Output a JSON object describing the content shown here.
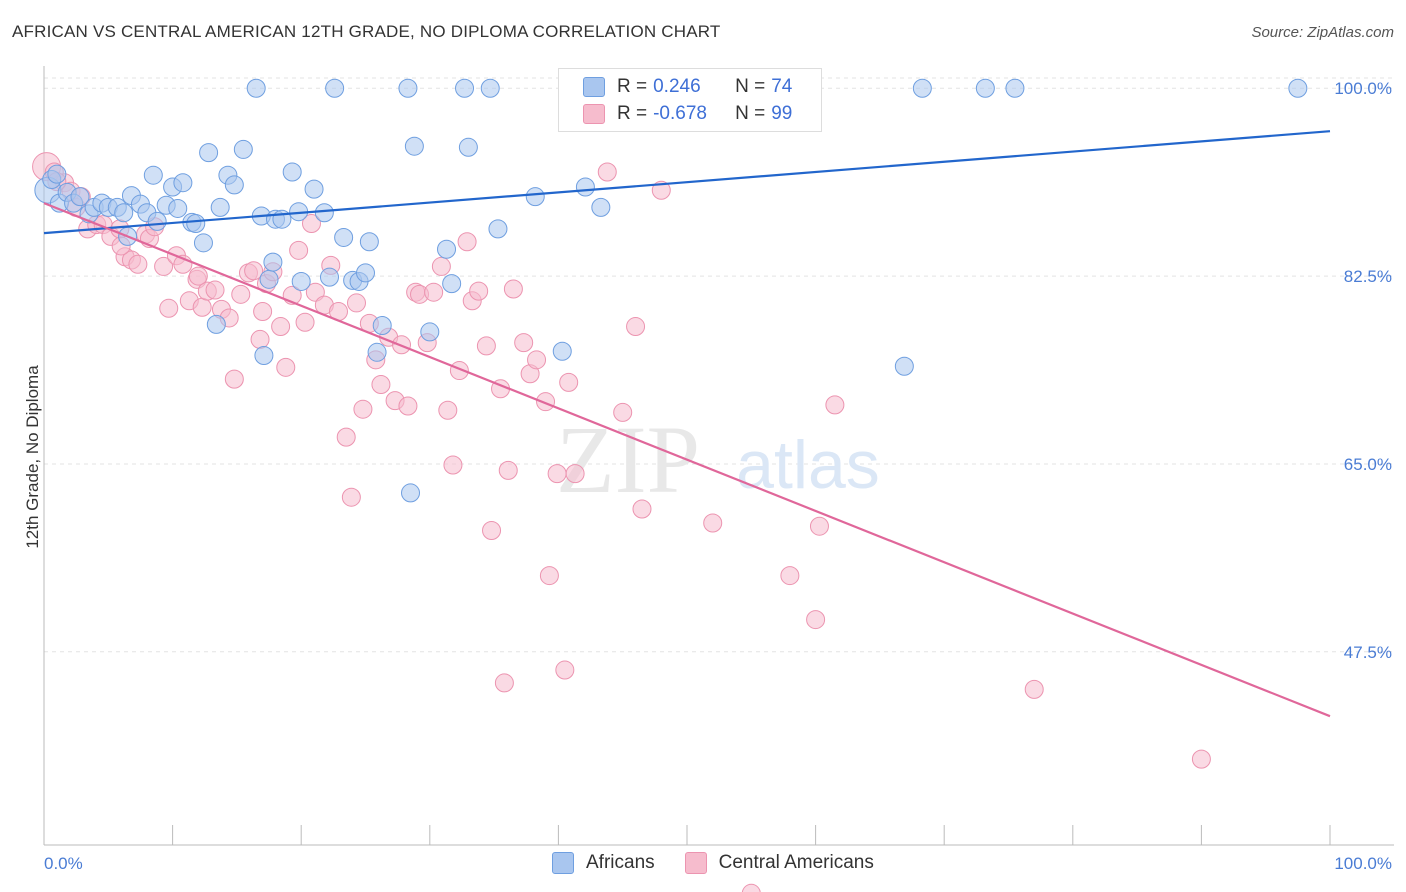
{
  "header": {
    "title": "AFRICAN VS CENTRAL AMERICAN 12TH GRADE, NO DIPLOMA CORRELATION CHART",
    "source": "Source: ZipAtlas.com"
  },
  "watermark": {
    "zip": "ZIP",
    "atlas": "atlas"
  },
  "legend": {
    "africans": {
      "r_label": "R =",
      "r_value": "0.246",
      "n_label": "N =",
      "n_value": "74"
    },
    "central_americans": {
      "r_label": "R =",
      "r_value": "-0.678",
      "n_label": "N =",
      "n_value": "99"
    }
  },
  "bottom_legend": {
    "africans": "Africans",
    "central_americans": "Central Americans"
  },
  "colors": {
    "africans_fill": "#a9c6ef",
    "africans_stroke": "#6f9fe0",
    "africans_line": "#2266cc",
    "central_fill": "#f6bccd",
    "central_stroke": "#ec94b0",
    "central_line": "#e0679a",
    "tick_text": "#4a7cd4",
    "grid": "#e3e3e3"
  },
  "chart_data": {
    "type": "scatter",
    "title": "AFRICAN VS CENTRAL AMERICAN 12TH GRADE, NO DIPLOMA CORRELATION CHART",
    "xlabel": "",
    "ylabel": "12th Grade, No Diploma",
    "xlim": [
      0,
      100
    ],
    "ylim": [
      29.5,
      101.7
    ],
    "x_tick_labels": [
      "0.0%",
      "100.0%"
    ],
    "y_ticks": [
      47.5,
      65.0,
      82.5,
      100.0
    ],
    "y_tick_labels": [
      "47.5%",
      "65.0%",
      "82.5%",
      "100.0%"
    ],
    "grid": true,
    "legend_position": "top-center",
    "series": [
      {
        "name": "Africans",
        "trend": {
          "x": [
            0,
            100
          ],
          "y": [
            86.5,
            96.0
          ]
        },
        "points": [
          [
            0.3,
            90.5
          ],
          [
            0.6,
            91.5
          ],
          [
            1.2,
            89.3
          ],
          [
            1.8,
            90.3
          ],
          [
            2.3,
            89.3
          ],
          [
            2.8,
            89.9
          ],
          [
            3.5,
            88.3
          ],
          [
            3.9,
            88.9
          ],
          [
            4.5,
            89.3
          ],
          [
            5.0,
            88.9
          ],
          [
            5.7,
            88.9
          ],
          [
            6.2,
            88.4
          ],
          [
            6.5,
            86.2
          ],
          [
            6.8,
            90.0
          ],
          [
            7.5,
            89.2
          ],
          [
            8.0,
            88.4
          ],
          [
            8.5,
            91.9
          ],
          [
            8.8,
            87.6
          ],
          [
            9.5,
            89.1
          ],
          [
            10.0,
            90.8
          ],
          [
            10.4,
            88.8
          ],
          [
            10.8,
            91.2
          ],
          [
            11.5,
            87.5
          ],
          [
            11.8,
            87.4
          ],
          [
            12.4,
            85.6
          ],
          [
            12.8,
            94.0
          ],
          [
            13.4,
            78.0
          ],
          [
            13.7,
            88.9
          ],
          [
            14.3,
            91.9
          ],
          [
            14.8,
            91.0
          ],
          [
            15.5,
            94.3
          ],
          [
            16.5,
            100.0
          ],
          [
            16.9,
            88.1
          ],
          [
            17.1,
            75.1
          ],
          [
            17.5,
            82.2
          ],
          [
            17.8,
            83.8
          ],
          [
            18.0,
            87.8
          ],
          [
            18.5,
            87.8
          ],
          [
            19.3,
            92.2
          ],
          [
            19.8,
            88.5
          ],
          [
            20.0,
            82.0
          ],
          [
            21.0,
            90.6
          ],
          [
            21.8,
            88.4
          ],
          [
            22.2,
            82.4
          ],
          [
            22.6,
            100.0
          ],
          [
            23.3,
            86.1
          ],
          [
            24.0,
            82.1
          ],
          [
            24.5,
            82.0
          ],
          [
            25.0,
            82.8
          ],
          [
            25.3,
            85.7
          ],
          [
            25.9,
            75.4
          ],
          [
            26.3,
            77.9
          ],
          [
            28.5,
            62.3
          ],
          [
            28.8,
            94.6
          ],
          [
            28.3,
            100.0
          ],
          [
            30.0,
            77.3
          ],
          [
            31.3,
            85.0
          ],
          [
            31.7,
            81.8
          ],
          [
            32.7,
            100.0
          ],
          [
            33.0,
            94.5
          ],
          [
            34.7,
            100.0
          ],
          [
            35.3,
            86.9
          ],
          [
            38.2,
            89.9
          ],
          [
            40.3,
            75.5
          ],
          [
            42.1,
            90.8
          ],
          [
            43.3,
            88.9
          ],
          [
            48.8,
            100.0
          ],
          [
            49.8,
            100.0
          ],
          [
            66.9,
            74.1
          ],
          [
            68.3,
            100.0
          ],
          [
            73.2,
            100.0
          ],
          [
            75.5,
            100.0
          ],
          [
            97.5,
            100.0
          ],
          [
            1.0,
            92.0
          ]
        ]
      },
      {
        "name": "Central Americans",
        "trend": {
          "x": [
            0,
            100
          ],
          "y": [
            89.3,
            41.5
          ]
        },
        "points": [
          [
            0.2,
            92.7
          ],
          [
            0.8,
            92.2
          ],
          [
            1.6,
            91.2
          ],
          [
            2.1,
            90.4
          ],
          [
            2.5,
            88.9
          ],
          [
            2.9,
            89.9
          ],
          [
            3.4,
            86.9
          ],
          [
            4.1,
            87.3
          ],
          [
            4.6,
            87.3
          ],
          [
            5.2,
            86.2
          ],
          [
            5.9,
            86.9
          ],
          [
            6.3,
            84.3
          ],
          [
            6.8,
            84.0
          ],
          [
            7.3,
            83.6
          ],
          [
            7.9,
            86.4
          ],
          [
            8.2,
            86.0
          ],
          [
            8.6,
            87.1
          ],
          [
            9.3,
            83.4
          ],
          [
            9.7,
            79.5
          ],
          [
            10.3,
            84.4
          ],
          [
            10.8,
            83.6
          ],
          [
            11.3,
            80.2
          ],
          [
            11.9,
            82.2
          ],
          [
            12.3,
            79.6
          ],
          [
            12.7,
            81.1
          ],
          [
            13.3,
            81.2
          ],
          [
            13.8,
            79.4
          ],
          [
            14.4,
            78.6
          ],
          [
            14.8,
            72.9
          ],
          [
            15.3,
            80.8
          ],
          [
            15.9,
            82.8
          ],
          [
            16.3,
            83.0
          ],
          [
            16.8,
            76.6
          ],
          [
            17.3,
            81.8
          ],
          [
            17.8,
            82.9
          ],
          [
            18.4,
            77.8
          ],
          [
            18.8,
            74.0
          ],
          [
            19.3,
            80.7
          ],
          [
            19.8,
            84.9
          ],
          [
            20.3,
            78.2
          ],
          [
            20.8,
            87.4
          ],
          [
            21.1,
            81.0
          ],
          [
            21.8,
            79.8
          ],
          [
            22.3,
            83.5
          ],
          [
            22.9,
            79.2
          ],
          [
            23.5,
            67.5
          ],
          [
            23.9,
            61.9
          ],
          [
            24.3,
            80.0
          ],
          [
            24.8,
            70.1
          ],
          [
            25.3,
            78.1
          ],
          [
            25.8,
            74.7
          ],
          [
            26.2,
            72.4
          ],
          [
            26.8,
            76.8
          ],
          [
            27.3,
            70.9
          ],
          [
            27.8,
            76.1
          ],
          [
            28.3,
            70.4
          ],
          [
            28.9,
            81.0
          ],
          [
            29.2,
            80.8
          ],
          [
            29.8,
            76.3
          ],
          [
            30.3,
            81.0
          ],
          [
            30.9,
            83.4
          ],
          [
            31.4,
            70.0
          ],
          [
            31.8,
            64.9
          ],
          [
            32.3,
            73.7
          ],
          [
            32.9,
            85.7
          ],
          [
            33.3,
            80.2
          ],
          [
            33.8,
            81.1
          ],
          [
            34.4,
            76.0
          ],
          [
            34.8,
            58.8
          ],
          [
            35.5,
            72.0
          ],
          [
            35.8,
            44.6
          ],
          [
            36.1,
            64.4
          ],
          [
            36.5,
            81.3
          ],
          [
            37.3,
            76.3
          ],
          [
            37.8,
            73.4
          ],
          [
            38.3,
            74.7
          ],
          [
            39.0,
            70.8
          ],
          [
            39.3,
            54.6
          ],
          [
            39.9,
            64.1
          ],
          [
            40.5,
            45.8
          ],
          [
            40.8,
            72.6
          ],
          [
            41.3,
            64.1
          ],
          [
            43.8,
            92.2
          ],
          [
            45.0,
            69.8
          ],
          [
            46.0,
            77.8
          ],
          [
            46.5,
            60.8
          ],
          [
            48.0,
            90.5
          ],
          [
            52.0,
            59.5
          ],
          [
            58.0,
            54.6
          ],
          [
            60.0,
            50.5
          ],
          [
            60.3,
            59.2
          ],
          [
            61.5,
            70.5
          ],
          [
            77.0,
            44.0
          ],
          [
            90.0,
            37.5
          ],
          [
            55.0,
            25.0
          ],
          [
            1.0,
            91.3
          ],
          [
            6.0,
            85.3
          ],
          [
            12.0,
            82.5
          ],
          [
            17.0,
            79.2
          ]
        ]
      }
    ]
  }
}
